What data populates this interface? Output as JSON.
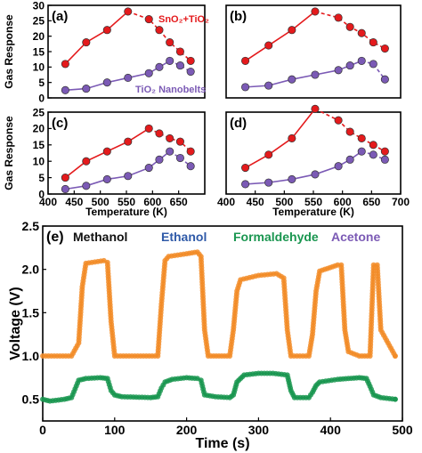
{
  "chart_data": [
    {
      "type": "line",
      "panel_label": "(a)",
      "ylabel": "Gas Response",
      "xlabel": "",
      "xlim": [
        400,
        700
      ],
      "ylim": [
        0,
        30
      ],
      "xticks": [],
      "yticks": [
        0,
        5,
        10,
        15,
        20,
        25,
        30
      ],
      "annotations": [
        "SnO₂+TiO₂",
        "TiO₂ Nanobelts"
      ],
      "series": [
        {
          "name": "SnO₂+TiO₂",
          "color": "#e41a1c",
          "x": [
            433,
            473,
            513,
            553,
            593,
            613,
            633,
            653,
            673
          ],
          "y": [
            11,
            18,
            22,
            28,
            25.5,
            22,
            18,
            15,
            12
          ]
        },
        {
          "name": "TiO₂ Nanobelts",
          "color": "#7b5ab5",
          "x": [
            433,
            473,
            513,
            553,
            593,
            613,
            633,
            653,
            673
          ],
          "y": [
            2.5,
            3,
            5,
            6.5,
            8,
            10,
            12,
            10.5,
            8.5
          ]
        }
      ]
    },
    {
      "type": "line",
      "panel_label": "(b)",
      "ylabel": "",
      "xlabel": "",
      "xlim": [
        400,
        700
      ],
      "ylim": [
        0,
        30
      ],
      "xticks": [],
      "yticks": [],
      "annotations": [],
      "series": [
        {
          "name": "SnO₂+TiO₂",
          "color": "#e41a1c",
          "x": [
            433,
            473,
            513,
            553,
            593,
            613,
            633,
            653,
            673
          ],
          "y": [
            12,
            17,
            22,
            28,
            26,
            23,
            21,
            18,
            16
          ]
        },
        {
          "name": "TiO₂ Nanobelts",
          "color": "#7b5ab5",
          "x": [
            433,
            473,
            513,
            553,
            593,
            613,
            633,
            653,
            673
          ],
          "y": [
            3.5,
            4,
            6,
            7.5,
            9,
            10.5,
            12,
            11,
            6
          ]
        }
      ]
    },
    {
      "type": "line",
      "panel_label": "(c)",
      "ylabel": "Gas Response",
      "xlabel": "Temperature (K)",
      "xlim": [
        400,
        700
      ],
      "ylim": [
        0,
        25
      ],
      "xticks": [
        400,
        450,
        500,
        550,
        600,
        650
      ],
      "yticks": [
        0,
        5,
        10,
        15,
        20,
        25
      ],
      "annotations": [],
      "series": [
        {
          "name": "SnO₂+TiO₂",
          "color": "#e41a1c",
          "x": [
            433,
            473,
            513,
            553,
            593,
            613,
            633,
            653,
            673
          ],
          "y": [
            5,
            10,
            13,
            16,
            20,
            18.5,
            17,
            16,
            13
          ]
        },
        {
          "name": "TiO₂ Nanobelts",
          "color": "#7b5ab5",
          "x": [
            433,
            473,
            513,
            553,
            593,
            613,
            633,
            653,
            673
          ],
          "y": [
            1.5,
            2.5,
            4.5,
            5.5,
            8,
            10.5,
            13,
            11,
            8.5
          ]
        }
      ]
    },
    {
      "type": "line",
      "panel_label": "(d)",
      "ylabel": "",
      "xlabel": "Temperature (K)",
      "xlim": [
        400,
        700
      ],
      "ylim": [
        0,
        25
      ],
      "xticks": [
        400,
        450,
        500,
        550,
        600,
        650,
        700
      ],
      "yticks": [],
      "annotations": [],
      "series": [
        {
          "name": "SnO₂+TiO₂",
          "color": "#e41a1c",
          "x": [
            433,
            473,
            513,
            553,
            593,
            613,
            633,
            653,
            673
          ],
          "y": [
            8,
            12,
            17,
            26,
            22.5,
            19,
            17,
            15,
            13
          ]
        },
        {
          "name": "TiO₂ Nanobelts",
          "color": "#7b5ab5",
          "x": [
            433,
            473,
            513,
            553,
            593,
            613,
            633,
            653,
            673
          ],
          "y": [
            3,
            3.5,
            4.5,
            6,
            8.5,
            10.5,
            13,
            12,
            10.5
          ]
        }
      ]
    },
    {
      "type": "line",
      "panel_label": "(e)",
      "ylabel": "Voltage (V)",
      "xlabel": "Time (s)",
      "xlim": [
        0,
        500
      ],
      "ylim": [
        0.25,
        2.5
      ],
      "xticks": [
        0,
        100,
        200,
        300,
        400,
        500
      ],
      "yticks": [
        0.5,
        1.0,
        1.5,
        2.0,
        2.5
      ],
      "gas_labels": [
        {
          "text": "Methanol",
          "color": "#111111"
        },
        {
          "text": "Ethanol",
          "color": "#2f5aa8"
        },
        {
          "text": "Formaldehyde",
          "color": "#1a9650"
        },
        {
          "text": "Acetone",
          "color": "#7b5ab5"
        }
      ],
      "series": [
        {
          "color": "#f28c28",
          "x": [
            0,
            40,
            50,
            55,
            60,
            85,
            90,
            95,
            100,
            160,
            165,
            170,
            175,
            200,
            215,
            220,
            225,
            230,
            260,
            265,
            270,
            275,
            300,
            325,
            335,
            340,
            345,
            370,
            375,
            380,
            385,
            410,
            415,
            420,
            425,
            440,
            455,
            460,
            465,
            470,
            490
          ],
          "y": [
            1.0,
            1.0,
            1.15,
            1.8,
            2.07,
            2.1,
            2.08,
            1.4,
            1.0,
            1.0,
            1.6,
            2.1,
            2.15,
            2.18,
            2.2,
            2.15,
            1.3,
            1.0,
            1.0,
            1.3,
            1.75,
            1.88,
            1.93,
            1.95,
            1.9,
            1.3,
            1.0,
            1.0,
            1.25,
            1.75,
            1.98,
            2.05,
            2.05,
            1.3,
            1.05,
            1.0,
            1.0,
            2.05,
            2.05,
            1.3,
            1.0
          ]
        },
        {
          "color": "#1a9650",
          "x": [
            0,
            10,
            30,
            40,
            45,
            50,
            60,
            80,
            90,
            95,
            100,
            110,
            150,
            160,
            165,
            170,
            180,
            200,
            215,
            220,
            225,
            240,
            260,
            265,
            270,
            280,
            300,
            320,
            340,
            345,
            350,
            370,
            375,
            380,
            385,
            410,
            440,
            450,
            455,
            460,
            470,
            490
          ],
          "y": [
            0.5,
            0.48,
            0.5,
            0.52,
            0.62,
            0.72,
            0.74,
            0.75,
            0.74,
            0.6,
            0.55,
            0.53,
            0.52,
            0.53,
            0.63,
            0.7,
            0.73,
            0.75,
            0.74,
            0.72,
            0.55,
            0.53,
            0.52,
            0.55,
            0.7,
            0.78,
            0.8,
            0.8,
            0.78,
            0.6,
            0.52,
            0.52,
            0.58,
            0.66,
            0.7,
            0.73,
            0.75,
            0.74,
            0.65,
            0.55,
            0.52,
            0.5
          ]
        }
      ]
    }
  ]
}
